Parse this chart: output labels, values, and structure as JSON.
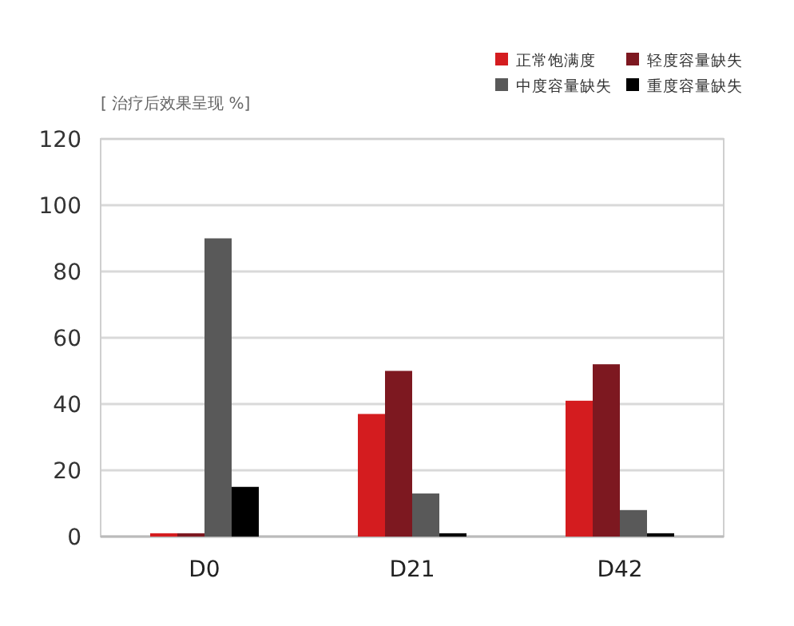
{
  "chart_data": {
    "type": "bar",
    "ylabel": "[ 治疗后效果呈现 %]",
    "categories": [
      "D0",
      "D21",
      "D42"
    ],
    "series": [
      {
        "name": "正常饱满度",
        "color": "#d41c1f",
        "values": [
          1,
          37,
          41
        ]
      },
      {
        "name": "轻度容量缺失",
        "color": "#7d1820",
        "values": [
          1,
          50,
          52
        ]
      },
      {
        "name": "中度容量缺失",
        "color": "#595959",
        "values": [
          90,
          13,
          8
        ]
      },
      {
        "name": "重度容量缺失",
        "color": "#000000",
        "values": [
          15,
          1,
          1
        ]
      }
    ],
    "ylim": [
      0,
      120
    ],
    "yticks": [
      0,
      20,
      40,
      60,
      80,
      100,
      120
    ],
    "grid": "y",
    "legend": "top right"
  }
}
